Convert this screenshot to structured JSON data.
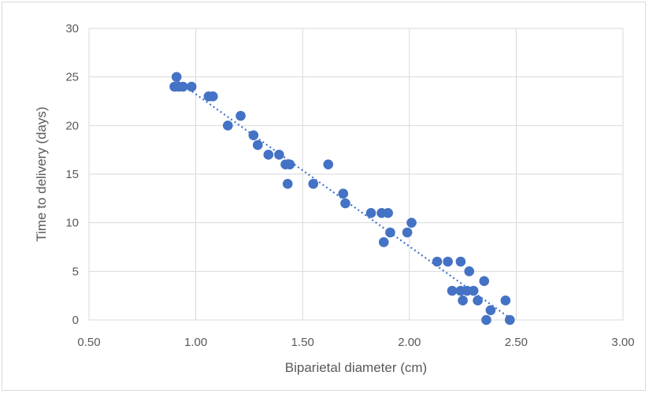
{
  "chart_data": {
    "type": "scatter",
    "title": "",
    "xlabel": "Biparietal diameter (cm)",
    "ylabel": "Time to delivery (days)",
    "xlim": [
      0.5,
      3.0
    ],
    "ylim": [
      0,
      30
    ],
    "x_ticks": [
      "0.50",
      "1.00",
      "1.50",
      "2.00",
      "2.50",
      "3.00"
    ],
    "y_ticks": [
      "0",
      "5",
      "10",
      "15",
      "20",
      "25",
      "30"
    ],
    "grid": true,
    "legend": "none",
    "trendline": {
      "style": "dotted",
      "x": [
        0.9,
        2.47
      ],
      "y": [
        24.8,
        0.2
      ]
    },
    "colors": {
      "points": "#4472c4",
      "grid": "#d9d9d9",
      "text": "#595959"
    },
    "series": [
      {
        "points": [
          [
            0.9,
            24
          ],
          [
            0.91,
            25
          ],
          [
            0.92,
            24
          ],
          [
            0.94,
            24
          ],
          [
            0.98,
            24
          ],
          [
            1.06,
            23
          ],
          [
            1.08,
            23
          ],
          [
            1.15,
            20
          ],
          [
            1.21,
            21
          ],
          [
            1.27,
            19
          ],
          [
            1.29,
            18
          ],
          [
            1.34,
            17
          ],
          [
            1.39,
            17
          ],
          [
            1.42,
            16
          ],
          [
            1.44,
            16
          ],
          [
            1.43,
            14
          ],
          [
            1.55,
            14
          ],
          [
            1.62,
            16
          ],
          [
            1.69,
            13
          ],
          [
            1.7,
            12
          ],
          [
            1.82,
            11
          ],
          [
            1.87,
            11
          ],
          [
            1.9,
            11
          ],
          [
            1.88,
            8
          ],
          [
            1.91,
            9
          ],
          [
            1.99,
            9
          ],
          [
            2.01,
            10
          ],
          [
            2.13,
            6
          ],
          [
            2.18,
            6
          ],
          [
            2.24,
            6
          ],
          [
            2.28,
            5
          ],
          [
            2.2,
            3
          ],
          [
            2.24,
            3
          ],
          [
            2.27,
            3
          ],
          [
            2.3,
            3
          ],
          [
            2.25,
            2
          ],
          [
            2.32,
            2
          ],
          [
            2.35,
            4
          ],
          [
            2.38,
            1
          ],
          [
            2.45,
            2
          ],
          [
            2.36,
            0
          ],
          [
            2.47,
            0
          ]
        ]
      }
    ]
  }
}
